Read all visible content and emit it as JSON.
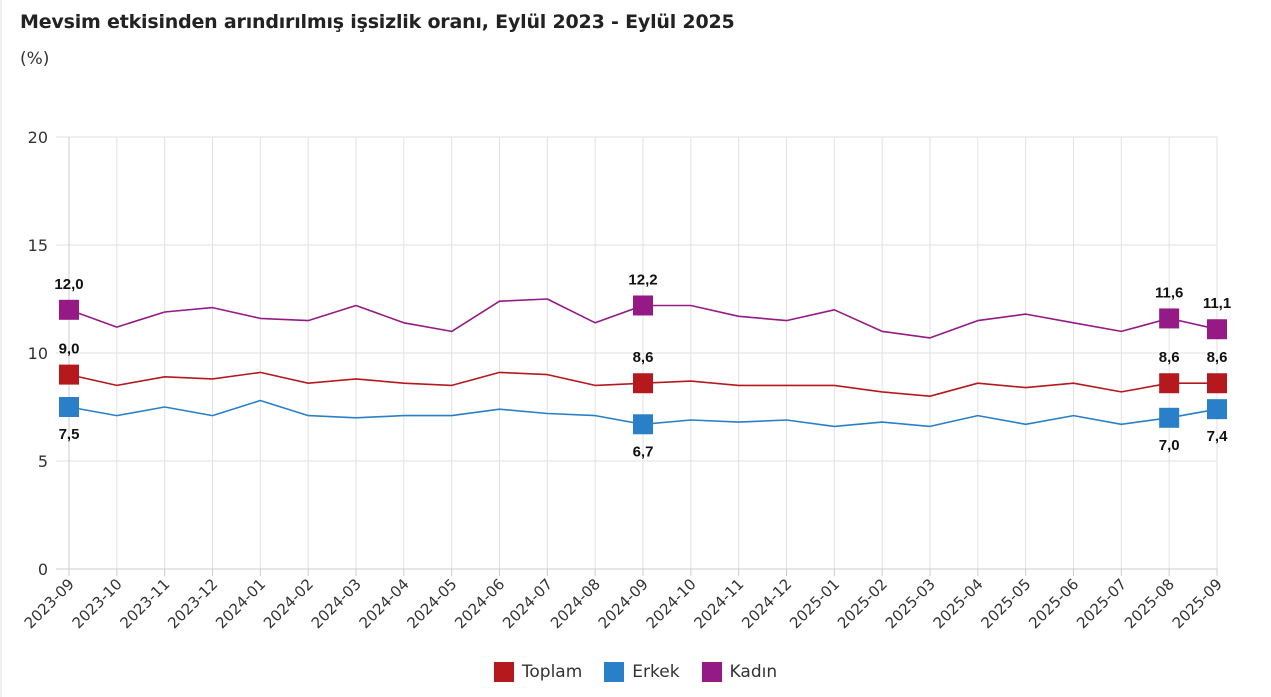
{
  "header": {
    "title": "Mevsim etkisinden arındırılmış işsizlik oranı, Eylül 2023 - Eylül 2025",
    "subtitle": "(%)"
  },
  "chart_data": {
    "type": "line",
    "title": "Mevsim etkisinden arındırılmış işsizlik oranı, Eylül 2023 - Eylül 2025",
    "subtitle": "(%)",
    "xlabel": "",
    "ylabel": "",
    "ylim": [
      0,
      20
    ],
    "yticks": [
      "0",
      "5",
      "10",
      "15",
      "20"
    ],
    "grid": true,
    "legend_position": "bottom-center",
    "x": [
      "2023-09",
      "2023-10",
      "2023-11",
      "2023-12",
      "2024-01",
      "2024-02",
      "2024-03",
      "2024-04",
      "2024-05",
      "2024-06",
      "2024-07",
      "2024-08",
      "2024-09",
      "2024-10",
      "2024-11",
      "2024-12",
      "2025-01",
      "2025-02",
      "2025-03",
      "2025-04",
      "2025-05",
      "2025-06",
      "2025-07",
      "2025-08",
      "2025-09"
    ],
    "series": [
      {
        "name": "Toplam",
        "color": "#b5191e",
        "values": [
          9.0,
          8.5,
          8.9,
          8.8,
          9.1,
          8.6,
          8.8,
          8.6,
          8.5,
          9.1,
          9.0,
          8.5,
          8.6,
          8.7,
          8.5,
          8.5,
          8.5,
          8.2,
          8.0,
          8.6,
          8.4,
          8.6,
          8.2,
          8.6,
          8.6
        ],
        "labels": [
          {
            "index": 0,
            "text": "9,0",
            "position": "above"
          },
          {
            "index": 12,
            "text": "8,6",
            "position": "above"
          },
          {
            "index": 23,
            "text": "8,6",
            "position": "above"
          },
          {
            "index": 24,
            "text": "8,6",
            "position": "above"
          }
        ]
      },
      {
        "name": "Erkek",
        "color": "#2980c8",
        "values": [
          7.5,
          7.1,
          7.5,
          7.1,
          7.8,
          7.1,
          7.0,
          7.1,
          7.1,
          7.4,
          7.2,
          7.1,
          6.7,
          6.9,
          6.8,
          6.9,
          6.6,
          6.8,
          6.6,
          7.1,
          6.7,
          7.1,
          6.7,
          7.0,
          7.4
        ],
        "labels": [
          {
            "index": 0,
            "text": "7,5",
            "position": "below"
          },
          {
            "index": 12,
            "text": "6,7",
            "position": "below"
          },
          {
            "index": 23,
            "text": "7,0",
            "position": "below"
          },
          {
            "index": 24,
            "text": "7,4",
            "position": "below"
          }
        ]
      },
      {
        "name": "Kadın",
        "color": "#951a85",
        "values": [
          12.0,
          11.2,
          11.9,
          12.1,
          11.6,
          11.5,
          12.2,
          11.4,
          11.0,
          12.4,
          12.5,
          11.4,
          12.2,
          12.2,
          11.7,
          11.5,
          12.0,
          11.0,
          10.7,
          11.5,
          11.8,
          11.4,
          11.0,
          11.6,
          11.1
        ],
        "labels": [
          {
            "index": 0,
            "text": "12,0",
            "position": "above"
          },
          {
            "index": 12,
            "text": "12,2",
            "position": "above"
          },
          {
            "index": 23,
            "text": "11,6",
            "position": "above"
          },
          {
            "index": 24,
            "text": "11,1",
            "position": "above"
          }
        ]
      }
    ]
  }
}
